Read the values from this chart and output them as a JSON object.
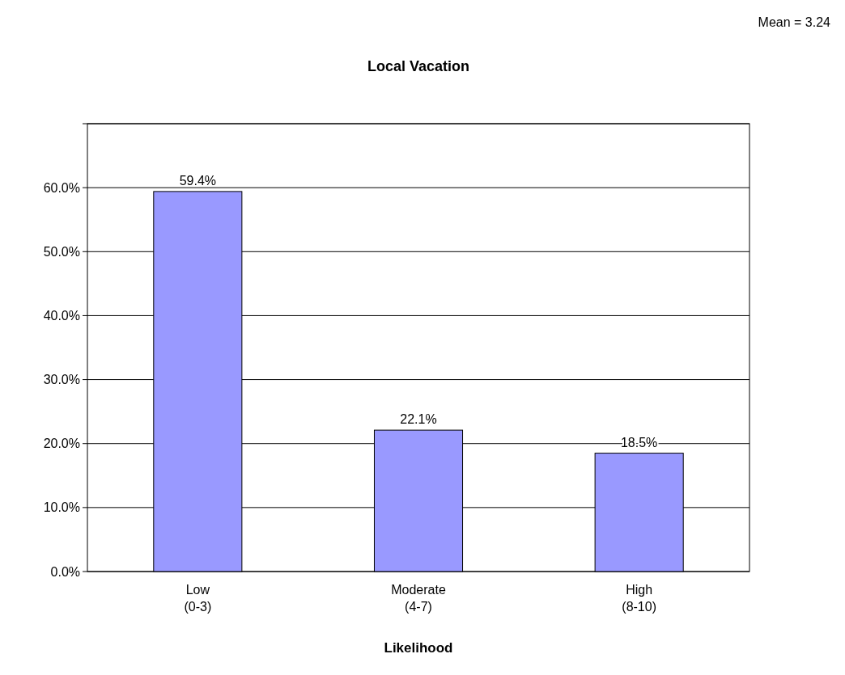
{
  "chart_data": {
    "type": "bar",
    "title": "Local Vacation",
    "xlabel": "Likelihood",
    "annotations": [
      "Mean = 3.24"
    ],
    "categories": [
      "Low (0-3)",
      "Moderate (4-7)",
      "High (8-10)"
    ],
    "values": [
      59.4,
      22.1,
      18.5
    ],
    "value_labels": [
      "59.4%",
      "22.1%",
      "18.5%"
    ],
    "color": "#9999ff",
    "ylim": [
      0,
      70
    ],
    "yticks": [
      {
        "value": 0,
        "label": "0.0%"
      },
      {
        "value": 10,
        "label": "10.0%"
      },
      {
        "value": 20,
        "label": "20.0%"
      },
      {
        "value": 30,
        "label": "30.0%"
      },
      {
        "value": 40,
        "label": "40.0%"
      },
      {
        "value": 50,
        "label": "50.0%"
      },
      {
        "value": 60,
        "label": "60.0%"
      },
      {
        "value": 70,
        "label": null
      }
    ],
    "grid": "y"
  }
}
